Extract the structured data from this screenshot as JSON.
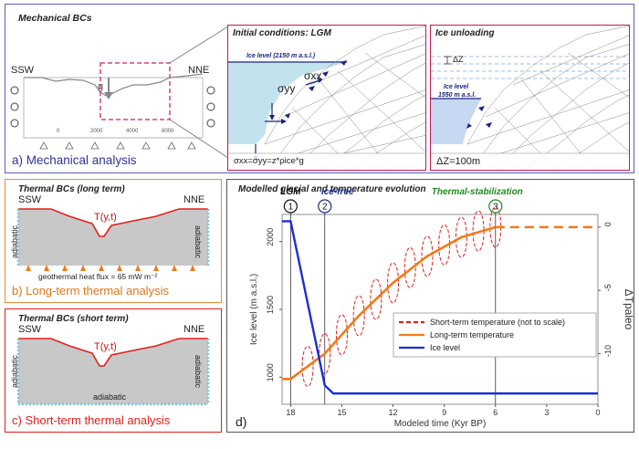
{
  "panel_a": {
    "title": "Mechanical BCs",
    "left_side": "SSW",
    "right_side": "NNE",
    "gravity_symbol": "g",
    "x_ticks": [
      "0",
      "2000",
      "4000",
      "6000"
    ],
    "caption": "a) Mechanical analysis",
    "initial": {
      "title": "Initial conditions: LGM",
      "ice_level": "Ice level (2150 m a.s.l.)",
      "sigma_xx": "σxx",
      "sigma_yy": "σyy",
      "formula": "σxx=σyy=z*ρice*g"
    },
    "unloading": {
      "title": "Ice unloading",
      "delta_z": "ΔZ",
      "ice_level": "Ice level",
      "ice_level_value": "1550 m a.s.l.",
      "delta_z_value": "ΔZ=100m"
    }
  },
  "panel_b": {
    "title": "Thermal BCs (long term)",
    "left_side": "SSW",
    "right_side": "NNE",
    "surface_label": "T(y,t)",
    "left_bc": "adiabatic",
    "right_bc": "adiabatic",
    "heat_flux": "geothermal heat flux = 65 mW m⁻²",
    "caption": "b) Long-term thermal analysis"
  },
  "panel_c": {
    "title": "Thermal BCs (short term)",
    "left_side": "SSW",
    "right_side": "NNE",
    "surface_label": "T(y,t)",
    "left_bc": "adiabatic",
    "right_bc": "adiabatic",
    "bottom_bc": "adiabatic",
    "caption": "c) Short-term thermal analysis"
  },
  "panel_d": {
    "title": "Modelled glacial and temperature evolution",
    "caption": "d)",
    "phases": [
      {
        "marker": "1",
        "label": "LGM",
        "color": "#111111"
      },
      {
        "marker": "2",
        "label": "Ice-free",
        "color": "#1d2a8a"
      },
      {
        "marker": "3",
        "label": "Thermal-stabilization",
        "color": "#1e8a1e"
      }
    ],
    "legend": {
      "short_term": "Short-term temperature (not to scale)",
      "long_term": "Long-term temperature",
      "ice": "Ice level"
    },
    "colors": {
      "short_term": "#e0201c",
      "long_term": "#f07a1a",
      "ice": "#1a2ed8"
    }
  },
  "chart_data": {
    "type": "line",
    "xlabel": "Modeled time (Kyr BP)",
    "ylabel": "Ice level (m a.s.l.)",
    "y2label": "ΔTpaleo",
    "xlim": [
      18.5,
      0
    ],
    "x_ticks": [
      18,
      15,
      12,
      9,
      6,
      3,
      0
    ],
    "ylim": [
      800,
      2200
    ],
    "y_ticks": [
      1000,
      1500,
      2000
    ],
    "y2lim": [
      -14,
      1
    ],
    "y2_ticks": [
      0,
      -5,
      -10
    ],
    "phase_lines_x": [
      18,
      16,
      6
    ],
    "series": [
      {
        "name": "Ice level",
        "axis": "left",
        "x": [
          18.5,
          18,
          16,
          15.5,
          0
        ],
        "y": [
          2150,
          2150,
          940,
          880,
          880
        ]
      },
      {
        "name": "Long-term temperature",
        "axis": "right",
        "x": [
          18.5,
          18,
          16,
          14,
          12,
          10,
          8,
          6,
          4,
          0
        ],
        "y": [
          -12,
          -12,
          -10,
          -7,
          -4.4,
          -2.3,
          -0.8,
          0,
          0,
          0
        ]
      },
      {
        "name": "Short-term temperature (not to scale)",
        "axis": "right",
        "x": [
          18,
          17,
          16,
          15,
          14,
          13,
          12,
          11,
          10,
          9,
          8,
          7,
          6
        ],
        "y": [
          -12,
          -11,
          -10,
          -8.5,
          -7,
          -5.7,
          -4.4,
          -3.2,
          -2.3,
          -1.4,
          -0.8,
          -0.3,
          0
        ]
      }
    ]
  }
}
